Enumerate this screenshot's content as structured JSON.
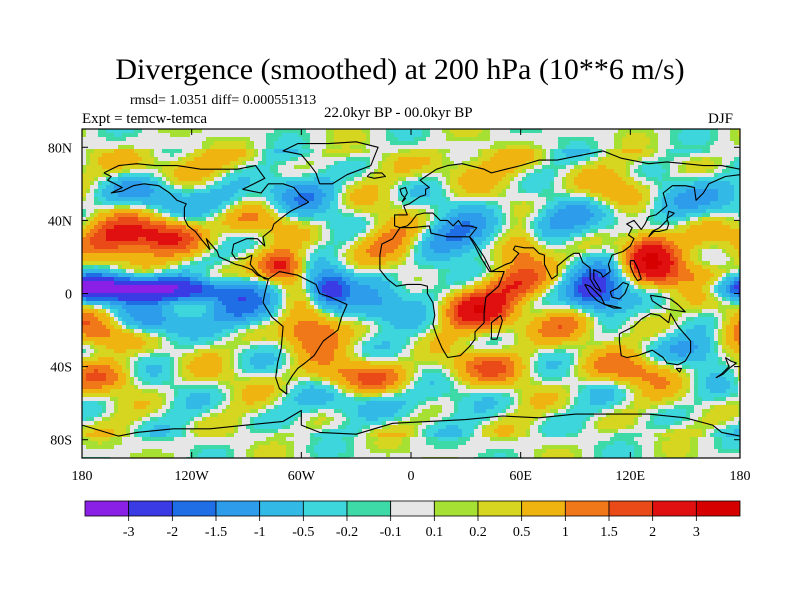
{
  "chart_data": {
    "type": "heatmap",
    "title": "Divergence (smoothed) at 200 hPa (10**6 m/s)",
    "stats_label": "rmsd= 1.0351 diff= 0.000551313",
    "experiment_label": "Expt = temcw-temca",
    "period_label": "22.0kyr BP - 00.0kyr BP",
    "season_label": "DJF",
    "x_axis": {
      "range": [
        -180,
        180
      ],
      "ticks": [
        -180,
        -120,
        -60,
        0,
        60,
        120,
        180
      ],
      "tick_labels": [
        "180",
        "120W",
        "60W",
        "0",
        "60E",
        "120E",
        "180"
      ]
    },
    "y_axis": {
      "range": [
        -90,
        90
      ],
      "ticks": [
        80,
        40,
        0,
        -40,
        -80
      ],
      "tick_labels": [
        "80N",
        "40N",
        "0",
        "40S",
        "80S"
      ]
    },
    "contour_levels": [
      "-3",
      "-2",
      "-1.5",
      "-1",
      "-0.5",
      "-0.2",
      "-0.1",
      "0.1",
      "0.2",
      "0.5",
      "1",
      "1.5",
      "2",
      "3"
    ],
    "colors": [
      "#8a1fe6",
      "#3b3be6",
      "#1f6ee6",
      "#2c9ceb",
      "#33b9e6",
      "#3cd6dc",
      "#3dd9a6",
      "#e6e6e6",
      "#a6e033",
      "#d6d620",
      "#f0b410",
      "#f07818",
      "#ea4a18",
      "#e01010",
      "#d60000"
    ],
    "value_range": [
      -3.5,
      3.5
    ]
  }
}
